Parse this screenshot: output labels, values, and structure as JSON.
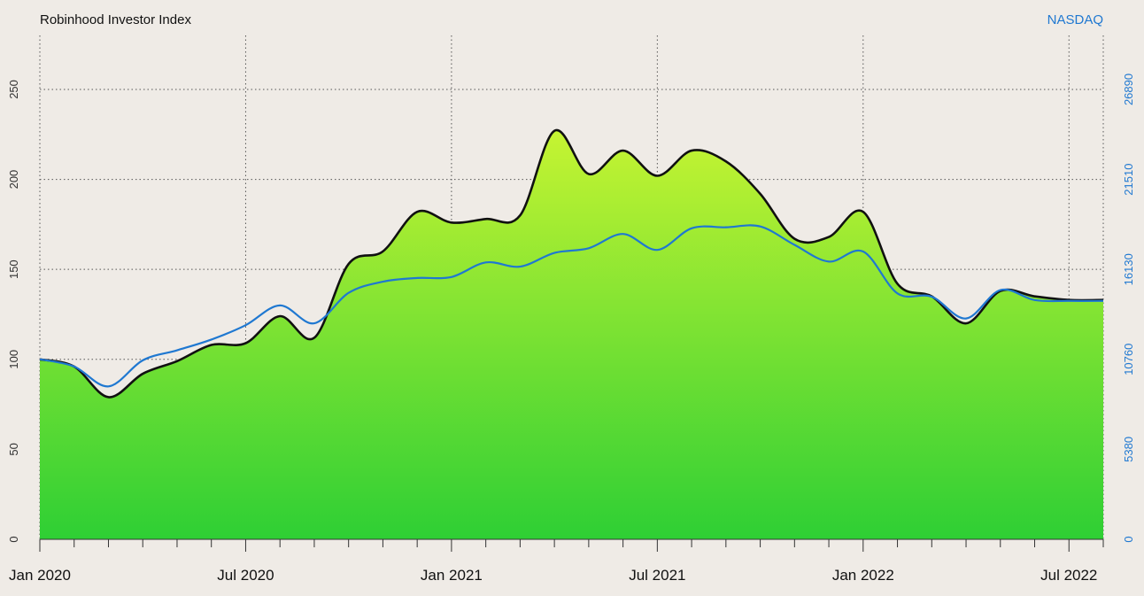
{
  "chart_data": {
    "type": "area",
    "title_left": "Robinhood Investor Index",
    "title_right": "NASDAQ",
    "x_tick_labels": [
      "Jan 2020",
      "Jul 2020",
      "Jan 2021",
      "Jul 2021",
      "Jan 2022",
      "Jul 2022"
    ],
    "x_tick_months": [
      0,
      6,
      12,
      18,
      24,
      30
    ],
    "x_range": [
      0,
      31
    ],
    "left_axis": {
      "range": [
        0,
        280
      ],
      "ticks": [
        0,
        50,
        100,
        150,
        200,
        250
      ],
      "tick_labels": [
        "0",
        "50",
        "100",
        "150",
        "200",
        "250"
      ]
    },
    "right_axis": {
      "range": [
        0,
        30118
      ],
      "ticks": [
        0,
        5380,
        10760,
        16130,
        21510,
        26890
      ],
      "tick_labels": [
        "0",
        "5380",
        "10760",
        "16130",
        "21510",
        "26890"
      ]
    },
    "grid": true,
    "colors": {
      "background": "#efebe6",
      "index_line": "#111111",
      "nasdaq_line": "#1f78d1",
      "fill_top": "#c6f432",
      "fill_bottom": "#2ecf34",
      "nasdaq_text": "#1f78d1",
      "grid": "#555555"
    },
    "series": [
      {
        "axis": "left",
        "months": [
          0,
          1,
          2,
          3,
          4,
          5,
          6,
          7,
          8,
          9,
          10,
          11,
          12,
          13,
          14,
          15,
          16,
          17,
          18,
          19,
          20,
          21,
          22,
          23,
          24,
          25,
          26,
          27,
          28,
          29,
          30,
          31
        ],
        "values": [
          100,
          96,
          79,
          92,
          99,
          108,
          109,
          124,
          112,
          153,
          160,
          182,
          176,
          178,
          180,
          227,
          203,
          216,
          202,
          216,
          210,
          192,
          167,
          168,
          182,
          142,
          135,
          120,
          138,
          135,
          133,
          133
        ]
      },
      {
        "axis": "right",
        "months": [
          0,
          1,
          2,
          3,
          4,
          5,
          6,
          7,
          8,
          9,
          10,
          11,
          12,
          13,
          14,
          15,
          16,
          17,
          18,
          19,
          20,
          21,
          22,
          23,
          24,
          25,
          26,
          27,
          28,
          29,
          30,
          31
        ],
        "values": [
          10760,
          10330,
          9140,
          10700,
          11300,
          11940,
          12800,
          13980,
          12910,
          14730,
          15400,
          15620,
          15680,
          16550,
          16300,
          17120,
          17400,
          18250,
          17300,
          18590,
          18650,
          18700,
          17600,
          16600,
          17200,
          14700,
          14500,
          13200,
          14900,
          14300,
          14250,
          14250
        ]
      }
    ]
  }
}
